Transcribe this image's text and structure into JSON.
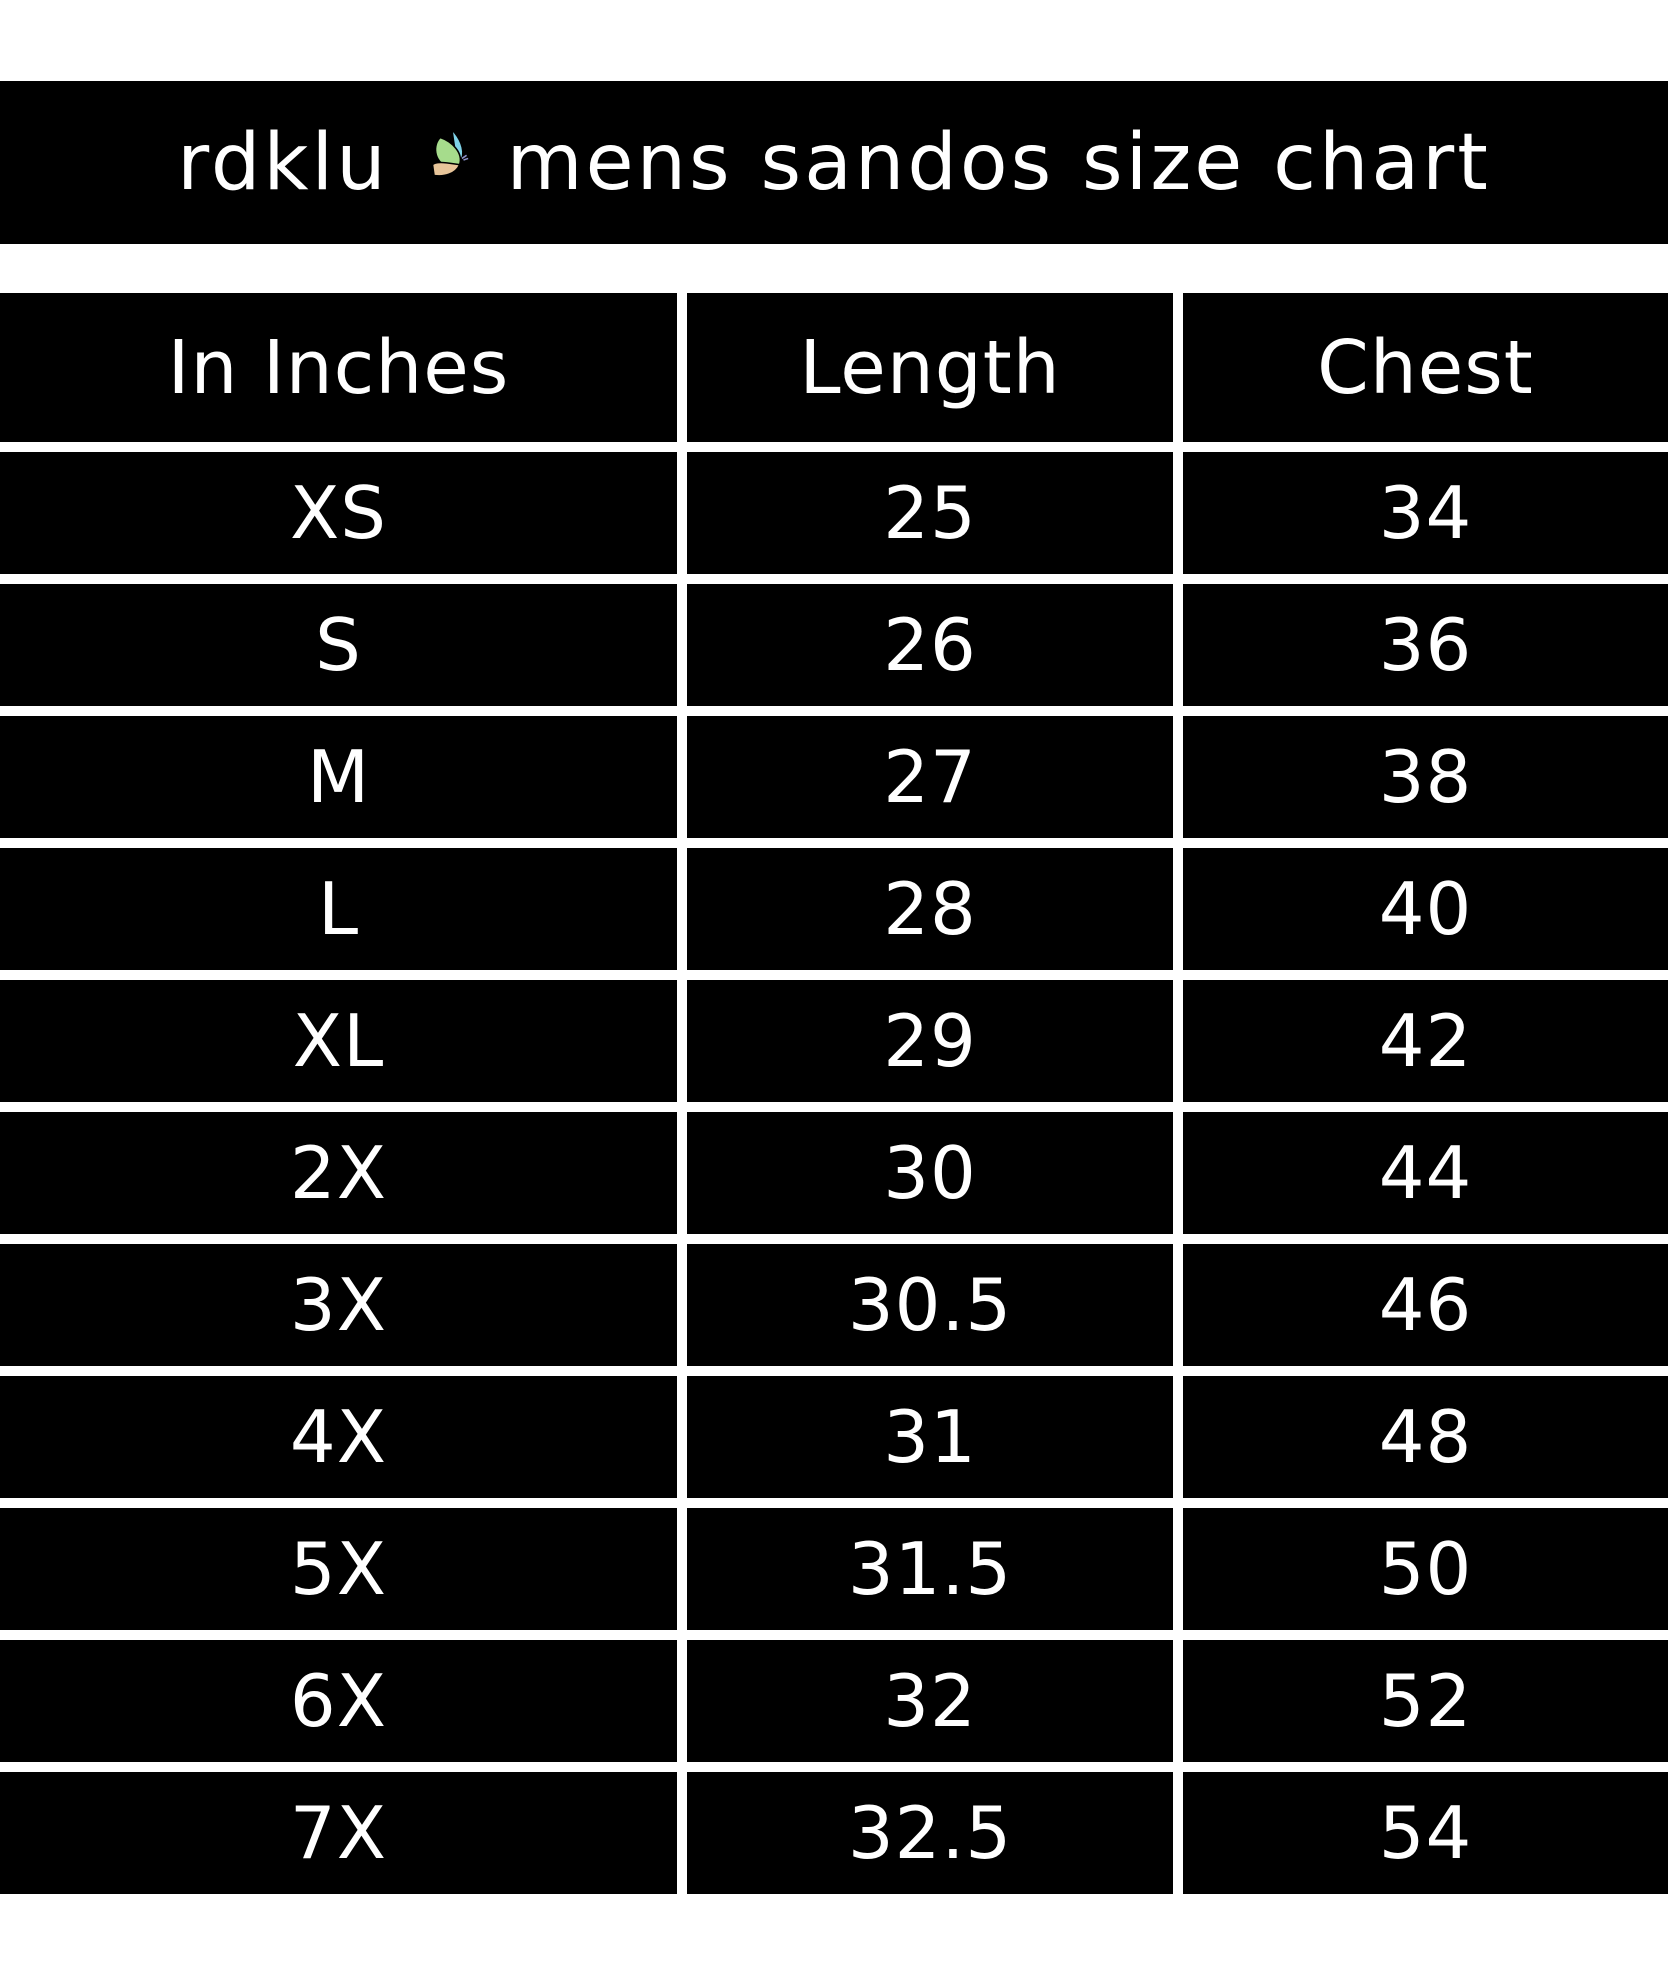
{
  "title": {
    "brand": "rdklu",
    "icon": "butterfly-icon",
    "text": "mens sandos size chart"
  },
  "table": {
    "headers": [
      "In Inches",
      "Length",
      "Chest"
    ],
    "rows": [
      [
        "XS",
        "25",
        "34"
      ],
      [
        "S",
        "26",
        "36"
      ],
      [
        "M",
        "27",
        "38"
      ],
      [
        "L",
        "28",
        "40"
      ],
      [
        "XL",
        "29",
        "42"
      ],
      [
        "2X",
        "30",
        "44"
      ],
      [
        "3X",
        "30.5",
        "46"
      ],
      [
        "4X",
        "31",
        "48"
      ],
      [
        "5X",
        "31.5",
        "50"
      ],
      [
        "6X",
        "32",
        "52"
      ],
      [
        "7X",
        "32.5",
        "54"
      ]
    ]
  },
  "colors": {
    "background": "#000000",
    "text": "#ffffff",
    "divider": "#ffffff"
  }
}
